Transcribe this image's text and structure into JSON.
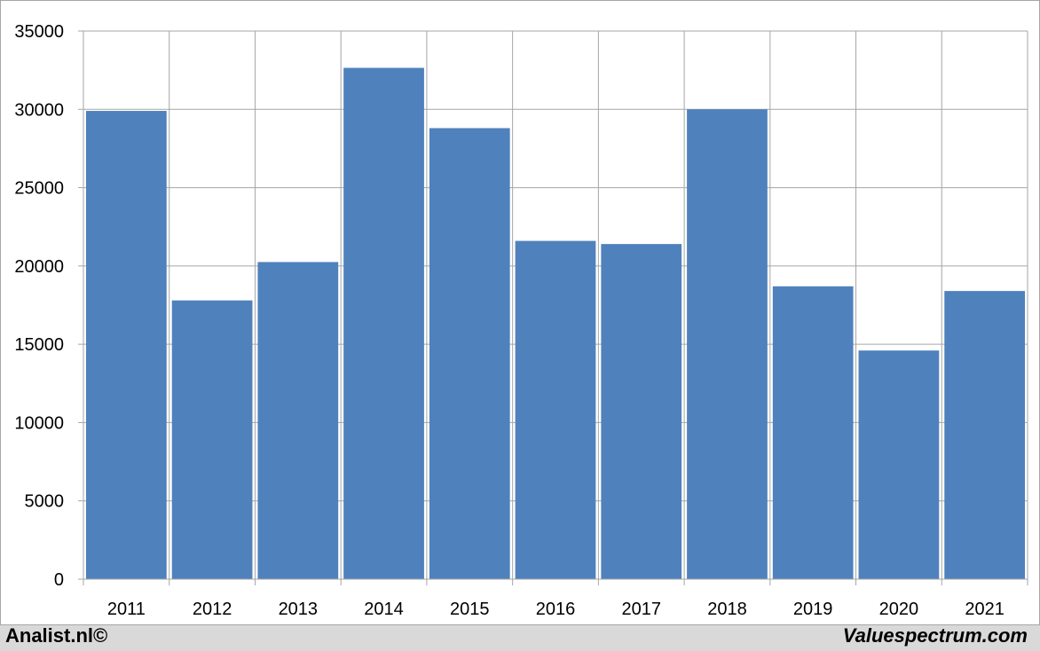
{
  "chart_data": {
    "type": "bar",
    "categories": [
      "2011",
      "2012",
      "2013",
      "2014",
      "2015",
      "2016",
      "2017",
      "2018",
      "2019",
      "2020",
      "2021"
    ],
    "values": [
      29900,
      17800,
      20250,
      32650,
      28800,
      21600,
      21400,
      30000,
      18700,
      14600,
      18400
    ],
    "title": "",
    "xlabel": "",
    "ylabel": "",
    "ylim": [
      0,
      35000
    ],
    "yticks": [
      0,
      5000,
      10000,
      15000,
      20000,
      25000,
      30000,
      35000
    ],
    "grid": true,
    "bar_color": "#4f81bd",
    "grid_color": "#a6a6a6"
  },
  "footer": {
    "left": "Analist.nl©",
    "right": "Valuespectrum.com"
  }
}
